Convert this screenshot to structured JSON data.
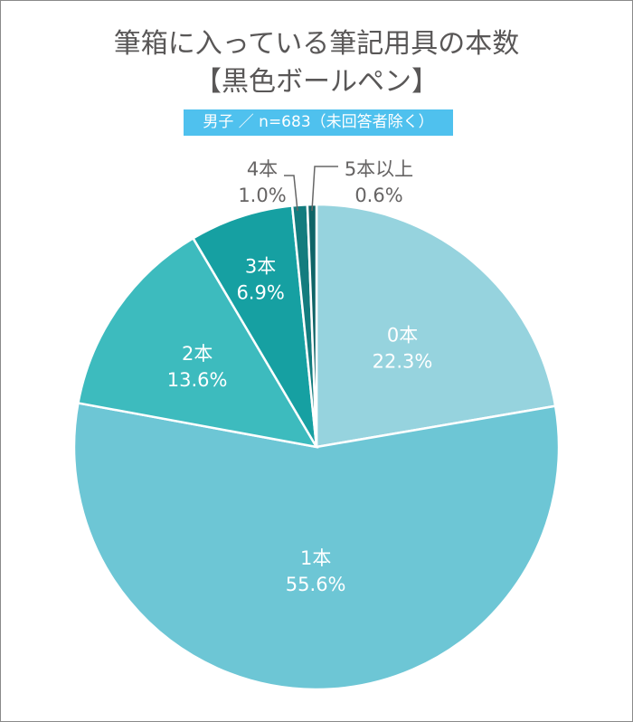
{
  "title_line1": "筆箱に入っている筆記用具の本数",
  "title_line2": "【黒色ボールペン】",
  "subtitle": "男子 ／ n=683（未回答者除く）",
  "chart_data": {
    "type": "pie",
    "title": "筆箱に入っている筆記用具の本数【黒色ボールペン】",
    "subtitle": "男子 ／ n=683（未回答者除く）",
    "start": "top",
    "direction": "clockwise",
    "slices": [
      {
        "label": "0本",
        "value": 22.3,
        "value_label": "22.3%",
        "color": "#96d3de"
      },
      {
        "label": "1本",
        "value": 55.6,
        "value_label": "55.6%",
        "color": "#6dc6d5"
      },
      {
        "label": "2本",
        "value": 13.6,
        "value_label": "13.6%",
        "color": "#3dbbbe"
      },
      {
        "label": "3本",
        "value": 6.9,
        "value_label": "6.9%",
        "color": "#16a0a2"
      },
      {
        "label": "4本",
        "value": 1.0,
        "value_label": "1.0%",
        "color": "#137c7e"
      },
      {
        "label": "5本以上",
        "value": 0.6,
        "value_label": "0.6%",
        "color": "#0e6467"
      }
    ]
  }
}
